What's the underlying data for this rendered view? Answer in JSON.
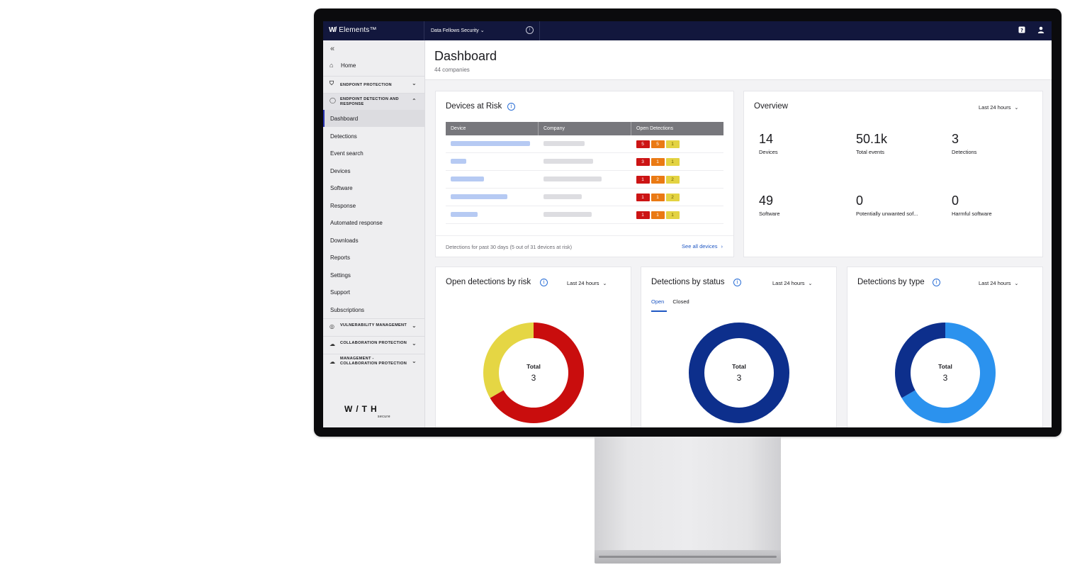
{
  "topbar": {
    "product": "Elements™",
    "logo_mark": "W/",
    "organization": "Data Fellows Security",
    "info_icon": "info-icon",
    "help_icon": "help-icon",
    "user_icon": "user-icon"
  },
  "sidebar": {
    "collapse_icon": "double-chevron-left-icon",
    "home": "Home",
    "sections": {
      "endpoint_protection": "ENDPOINT PROTECTION",
      "edr": "ENDPOINT DETECTION AND RESPONSE",
      "vulnerability": "VULNERABILITY MANAGEMENT",
      "collaboration": "COLLABORATION PROTECTION",
      "management": "MANAGEMENT - COLLABORATION PROTECTION"
    },
    "items": [
      "Dashboard",
      "Detections",
      "Event search",
      "Devices",
      "Software",
      "Response",
      "Automated response",
      "Downloads",
      "Reports",
      "Settings",
      "Support",
      "Subscriptions"
    ],
    "brand": "W/TH",
    "brand_sub": "secure"
  },
  "page": {
    "title": "Dashboard",
    "subtitle": "44 companies"
  },
  "devices_at_risk": {
    "title": "Devices at Risk",
    "columns": [
      "Device",
      "Company",
      "Open Detections"
    ],
    "rows": [
      {
        "detections": [
          "5",
          "5",
          "1"
        ]
      },
      {
        "detections": [
          "3",
          "1",
          "1"
        ]
      },
      {
        "detections": [
          "1",
          "2",
          "2"
        ]
      },
      {
        "detections": [
          "1",
          "1",
          "2"
        ]
      },
      {
        "detections": [
          "1",
          "1",
          "1"
        ]
      }
    ],
    "footer": "Detections for past 30 days (5 out of 31 devices at risk)",
    "see_all": "See all devices"
  },
  "overview": {
    "title": "Overview",
    "range": "Last 24 hours",
    "stats": [
      {
        "value": "14",
        "label": "Devices"
      },
      {
        "value": "50.1k",
        "label": "Total events"
      },
      {
        "value": "3",
        "label": "Detections"
      },
      {
        "value": "49",
        "label": "Software"
      },
      {
        "value": "0",
        "label": "Potentially unwanted sof..."
      },
      {
        "value": "0",
        "label": "Harmful software"
      }
    ]
  },
  "by_risk": {
    "title": "Open detections by risk",
    "range": "Last 24 hours",
    "total_label": "Total",
    "total": "3",
    "slices": [
      {
        "value": 2,
        "color": "#c90d0d"
      },
      {
        "value": 1,
        "color": "#e5d644"
      }
    ]
  },
  "by_status": {
    "title": "Detections by status",
    "range": "Last 24 hours",
    "tabs": [
      "Open",
      "Closed"
    ],
    "total_label": "Total",
    "total": "3",
    "slices": [
      {
        "value": 3,
        "color": "#0d2f8c"
      }
    ]
  },
  "by_type": {
    "title": "Detections by type",
    "range": "Last 24 hours",
    "total_label": "Total",
    "total": "3",
    "slices": [
      {
        "value": 2,
        "color": "#2b92ee"
      },
      {
        "value": 1,
        "color": "#0d2f8c"
      }
    ]
  }
}
